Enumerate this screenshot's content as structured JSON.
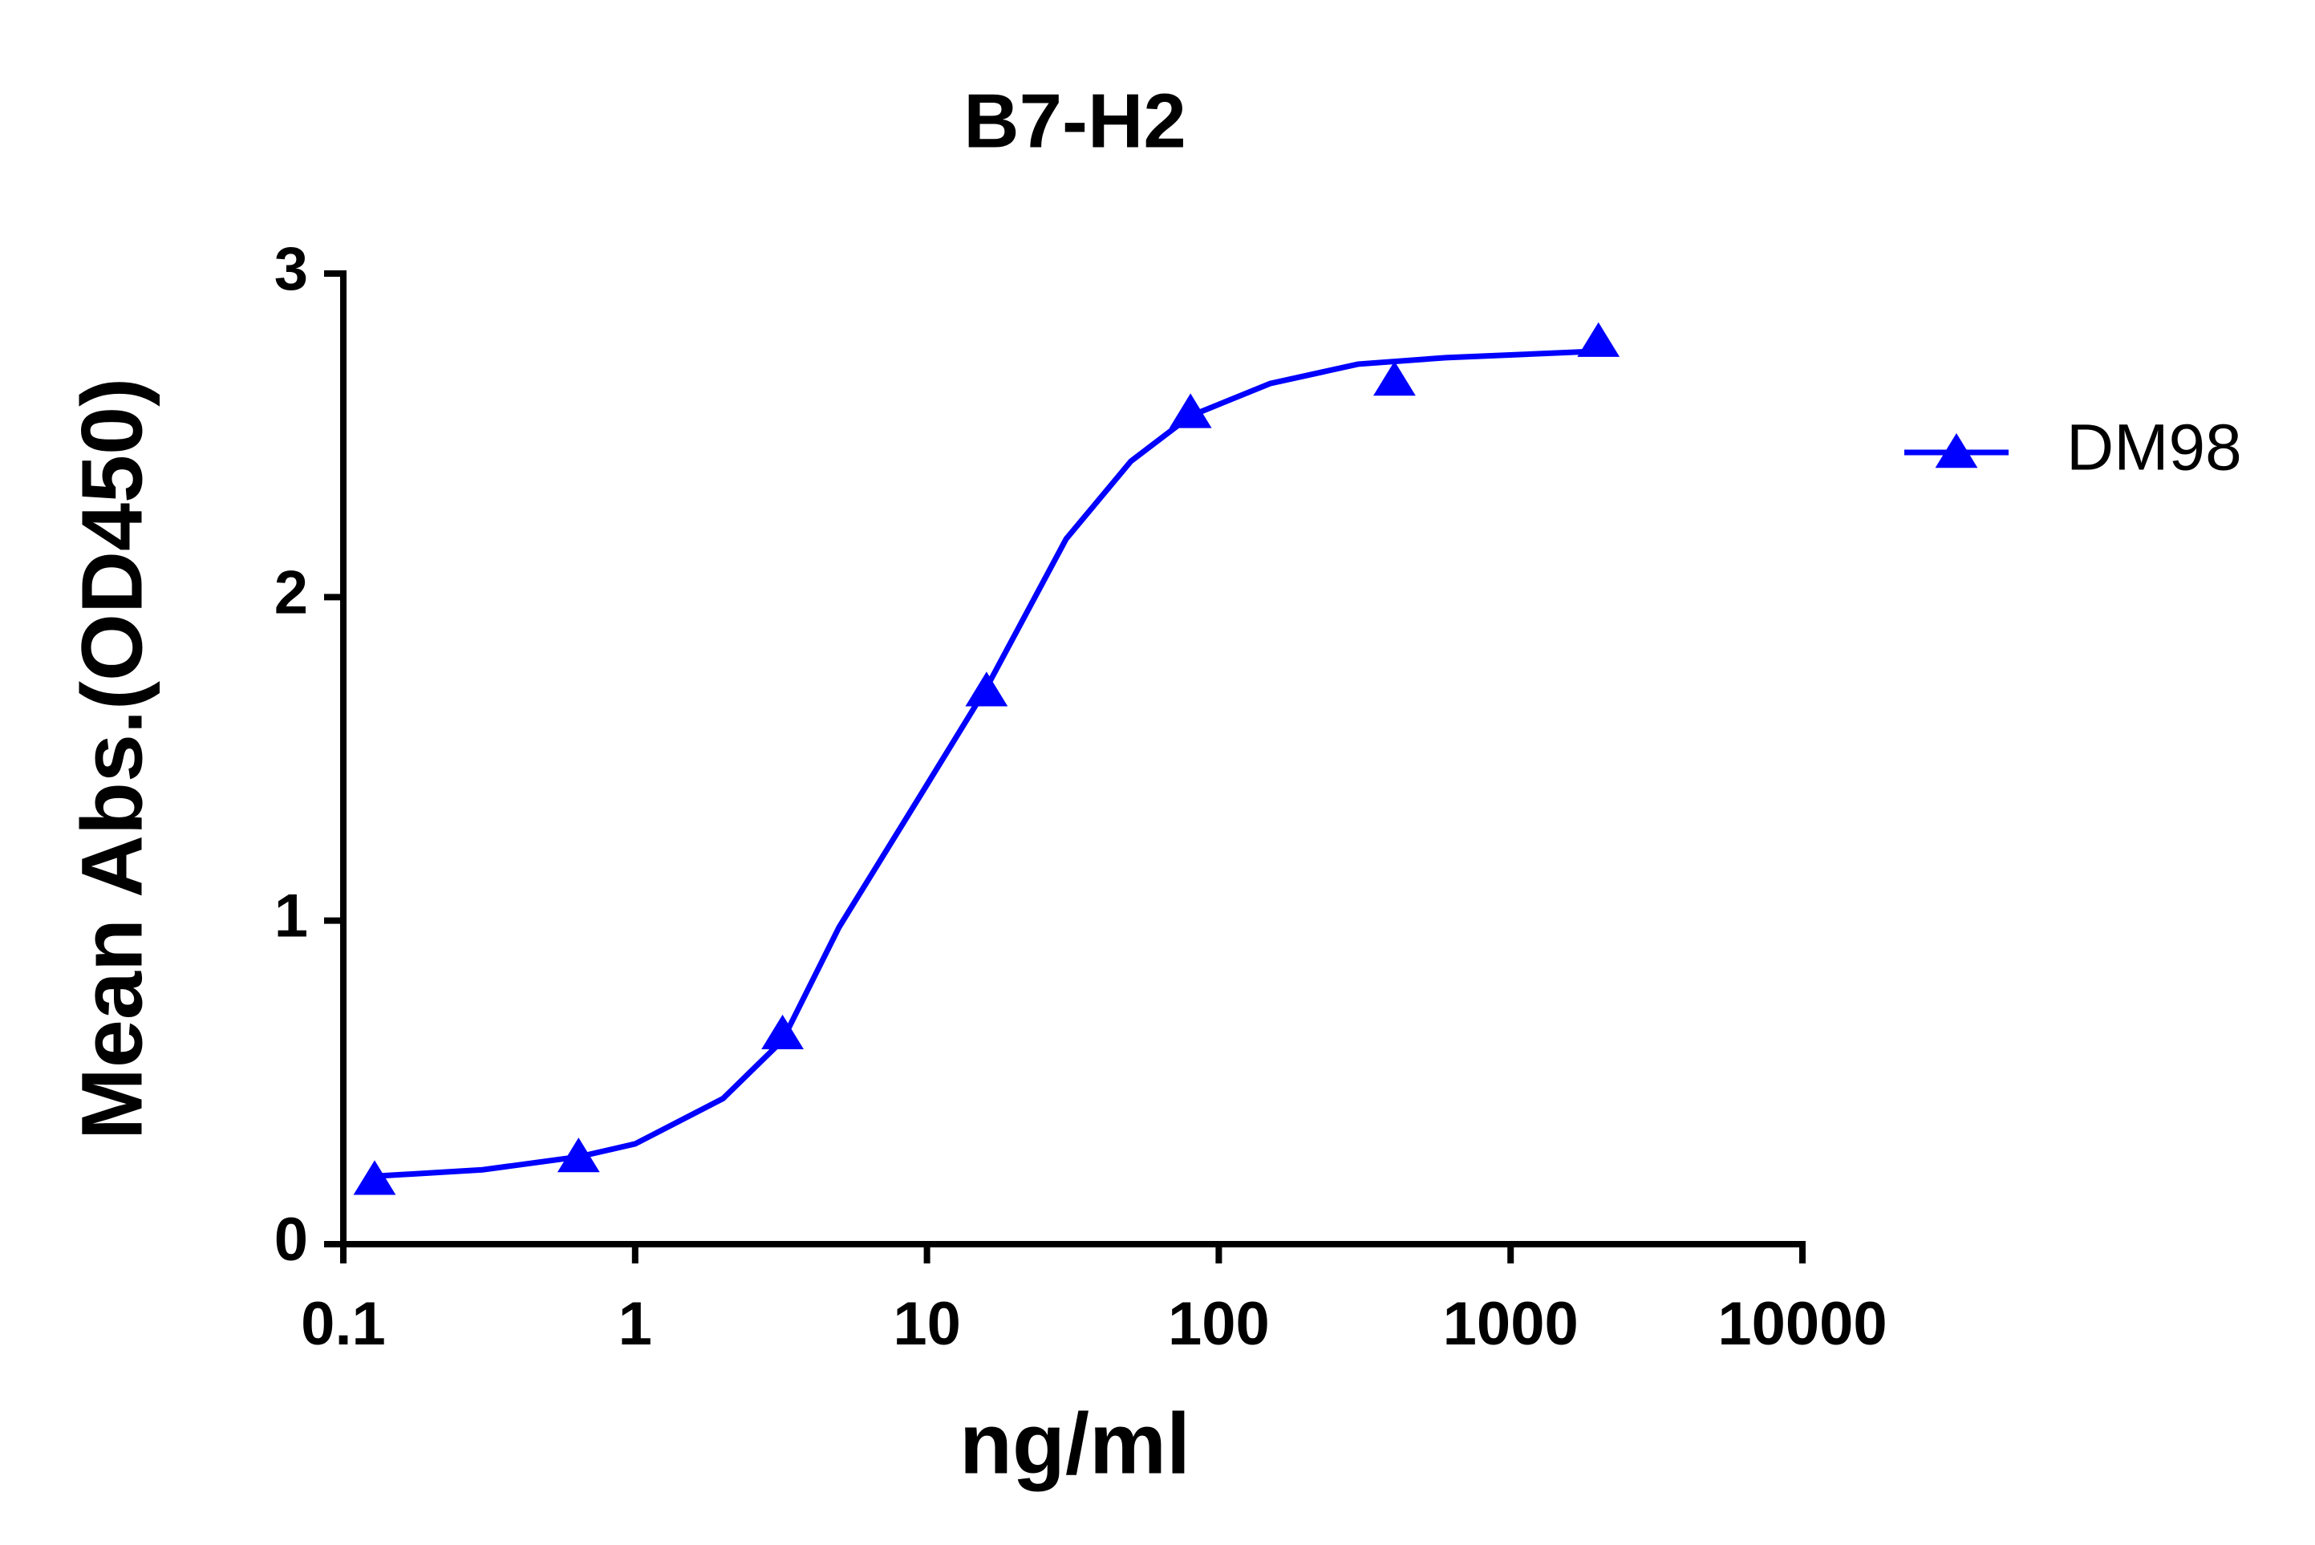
{
  "chart_data": {
    "type": "scatter_fit",
    "title": "B7-H2",
    "xlabel": "ng/ml",
    "ylabel": "Mean Abs.(OD450)",
    "log_x": true,
    "xlim": [
      0.1,
      10000
    ],
    "xticks": [
      0.1,
      1,
      10,
      100,
      1000,
      10000
    ],
    "ylim": [
      0,
      3
    ],
    "yticks": [
      0,
      1,
      2,
      3
    ],
    "legend": "right",
    "series": [
      {
        "name": "DM98",
        "color": "#0000ff",
        "x": [
          0.128,
          0.64,
          3.2,
          16,
          80,
          400,
          2000
        ],
        "values": [
          0.2,
          0.27,
          0.65,
          1.71,
          2.57,
          2.67,
          2.79
        ],
        "fit_x": [
          0.128,
          0.3,
          0.64,
          1,
          2,
          3.2,
          5,
          10,
          16,
          30,
          50,
          80,
          150,
          300,
          600,
          2000
        ],
        "fit_values": [
          0.21,
          0.23,
          0.27,
          0.31,
          0.45,
          0.63,
          0.98,
          1.42,
          1.72,
          2.18,
          2.42,
          2.56,
          2.66,
          2.72,
          2.74,
          2.76
        ]
      }
    ]
  }
}
